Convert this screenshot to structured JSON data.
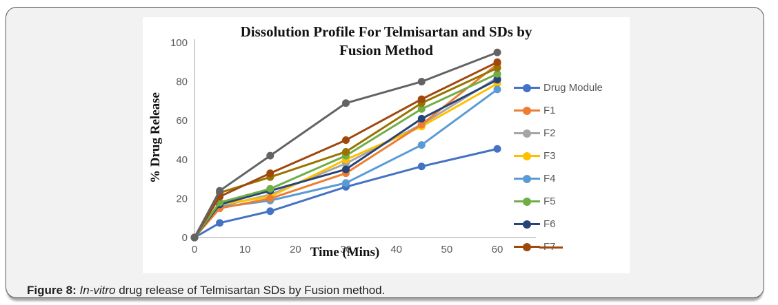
{
  "figure": {
    "caption_prefix": "Figure 8: ",
    "caption_italic": "In-vitro",
    "caption_rest": " drug release of Telmisartan SDs by Fusion method."
  },
  "chart_data": {
    "type": "line",
    "title_line1": "Dissolution Profile For Telmisartan and SDs by",
    "title_line2": "Fusion Method",
    "xlabel": "Time (Mins)",
    "ylabel": "% Drug Release",
    "x": [
      0,
      5,
      15,
      30,
      45,
      60
    ],
    "x_ticks": [
      0,
      10,
      20,
      30,
      40,
      50,
      60
    ],
    "y_ticks": [
      0,
      20,
      40,
      60,
      80,
      100
    ],
    "xlim": [
      0,
      60
    ],
    "ylim": [
      0,
      100
    ],
    "grid": false,
    "legend_position": "right",
    "axis_color": "#bfbfbf",
    "tick_label_color": "#595959",
    "series": [
      {
        "name": "Drug Module",
        "color": "#4472C4",
        "values": [
          0,
          7.5,
          13.5,
          26,
          36.5,
          45.5
        ]
      },
      {
        "name": "F2",
        "color": "#A5A5A5",
        "values": [
          0,
          16,
          22,
          38,
          58,
          82
        ]
      },
      {
        "name": "F3",
        "color": "#FFC000",
        "values": [
          0,
          17,
          21,
          40,
          57,
          79
        ]
      },
      {
        "name": "F4",
        "color": "#5B9BD5",
        "values": [
          0,
          15.5,
          19,
          28,
          47.5,
          76
        ]
      },
      {
        "name": "F1",
        "color": "#ED7D31",
        "values": [
          0,
          15,
          20,
          33,
          58,
          89
        ]
      },
      {
        "name": "F6",
        "color": "#264478",
        "values": [
          0,
          17,
          24,
          35,
          61,
          81
        ]
      },
      {
        "name": "F5",
        "color": "#70AD47",
        "values": [
          0,
          18,
          25,
          42,
          66,
          84
        ]
      },
      {
        "name": "unlabeled dark gold line",
        "color": "#997300",
        "values": [
          0,
          23,
          31,
          44,
          69,
          87
        ]
      },
      {
        "name": "F7",
        "color": "#9E480E",
        "values": [
          0,
          21,
          33,
          50,
          71,
          90
        ]
      },
      {
        "name": "unlabeled dark gray line",
        "color": "#636363",
        "values": [
          0,
          24,
          42,
          69,
          80,
          95
        ]
      }
    ],
    "legend": [
      {
        "label": "Drug Module",
        "color": "#4472C4",
        "struck": false
      },
      {
        "label": "F1",
        "color": "#ED7D31",
        "struck": false
      },
      {
        "label": "F2",
        "color": "#A5A5A5",
        "struck": false
      },
      {
        "label": "F3",
        "color": "#FFC000",
        "struck": false
      },
      {
        "label": "F4",
        "color": "#5B9BD5",
        "struck": false
      },
      {
        "label": "F5",
        "color": "#70AD47",
        "struck": false
      },
      {
        "label": "F6",
        "color": "#264478",
        "struck": false
      },
      {
        "label": "F7",
        "color": "#9E480E",
        "struck": true
      }
    ]
  }
}
